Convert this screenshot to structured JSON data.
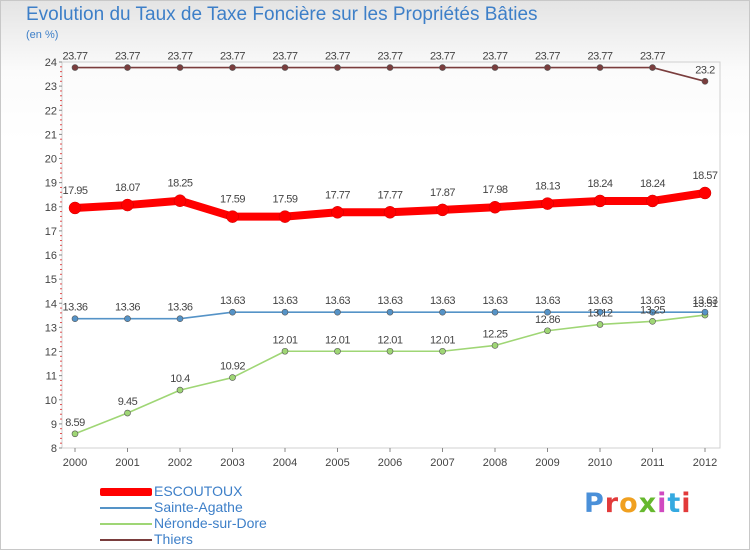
{
  "title": "Evolution du Taux de Taxe Foncière sur les Propriétés Bâties",
  "unit_label": "(en %)",
  "colors": {
    "ESCOUTOUX": "#ff0000",
    "Sainte-Agathe": "#5593c7",
    "Néronde-sur-Dore": "#9fd675",
    "Thiers": "#7a3d3d"
  },
  "legend": [
    "ESCOUTOUX",
    "Sainte-Agathe",
    "Néronde-sur-Dore",
    "Thiers"
  ],
  "logo_text": "Proxiti",
  "chart_data": {
    "type": "line",
    "title": "Evolution du Taux de Taxe Foncière sur les Propriétés Bâties",
    "xlabel": "",
    "ylabel": "(en %)",
    "ylim": [
      8,
      24
    ],
    "yticks": [
      "8",
      "9",
      "10",
      "11",
      "12",
      "13",
      "14",
      "15",
      "16",
      "17",
      "18",
      "19",
      "20",
      "21",
      "22",
      "23",
      "24"
    ],
    "categories": [
      "2000",
      "2001",
      "2002",
      "2003",
      "2004",
      "2005",
      "2006",
      "2007",
      "2008",
      "2009",
      "2010",
      "2011",
      "2012"
    ],
    "series": [
      {
        "name": "ESCOUTOUX",
        "values": [
          17.95,
          18.07,
          18.25,
          17.59,
          17.59,
          17.77,
          17.77,
          17.87,
          17.98,
          18.13,
          18.24,
          18.24,
          18.57
        ],
        "labels": [
          "17.95",
          "18.07",
          "18.25",
          "17.59",
          "17.59",
          "17.77",
          "17.77",
          "17.87",
          "17.98",
          "18.13",
          "18.24",
          "18.24",
          "18.57"
        ]
      },
      {
        "name": "Sainte-Agathe",
        "values": [
          13.36,
          13.36,
          13.36,
          13.63,
          13.63,
          13.63,
          13.63,
          13.63,
          13.63,
          13.63,
          13.63,
          13.63,
          13.63
        ],
        "labels": [
          "13.36",
          "13.36",
          "13.36",
          "13.63",
          "13.63",
          "13.63",
          "13.63",
          "13.63",
          "13.63",
          "13.63",
          "13.63",
          "13.63",
          "13.63"
        ]
      },
      {
        "name": "Néronde-sur-Dore",
        "values": [
          8.59,
          9.45,
          10.4,
          10.92,
          12.01,
          12.01,
          12.01,
          12.01,
          12.25,
          12.86,
          13.12,
          13.25,
          13.51
        ],
        "labels": [
          "8.59",
          "9.45",
          "10.4",
          "10.92",
          "12.01",
          "12.01",
          "12.01",
          "12.01",
          "12.25",
          "12.86",
          "13.12",
          "13.25",
          "13.51"
        ]
      },
      {
        "name": "Thiers",
        "values": [
          23.77,
          23.77,
          23.77,
          23.77,
          23.77,
          23.77,
          23.77,
          23.77,
          23.77,
          23.77,
          23.77,
          23.77,
          23.2
        ],
        "labels": [
          "23.77",
          "23.77",
          "23.77",
          "23.77",
          "23.77",
          "23.77",
          "23.77",
          "23.77",
          "23.77",
          "23.77",
          "23.77",
          "23.77",
          "23.2"
        ]
      }
    ]
  }
}
